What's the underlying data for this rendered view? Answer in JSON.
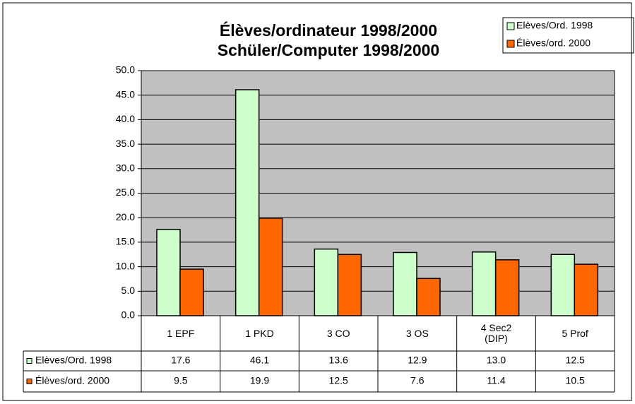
{
  "chart_data": {
    "type": "bar",
    "title": "Élèves/ordinateur 1998/2000",
    "subtitle": "Schüler/Computer 1998/2000",
    "categories": [
      "1 EPF",
      "1 PKD",
      "3 CO",
      "3 OS",
      "4 Sec2\n(DIP)",
      "5 Prof"
    ],
    "series": [
      {
        "name": "Elèves/Ord. 1998",
        "color": "#ccffcc",
        "values": [
          17.6,
          46.1,
          13.6,
          12.9,
          13.0,
          12.5
        ],
        "value_labels": [
          "17.6",
          "46.1",
          "13.6",
          "12.9",
          "13.0",
          "12.5"
        ]
      },
      {
        "name": "Élèves/ord. 2000",
        "color": "#ff6600",
        "values": [
          9.5,
          19.9,
          12.5,
          7.6,
          11.4,
          10.5
        ],
        "value_labels": [
          "9.5",
          "19.9",
          "12.5",
          "7.6",
          "11.4",
          "10.5"
        ]
      }
    ],
    "ylim": [
      0,
      50
    ],
    "yticks": [
      {
        "value": 0,
        "label": "0.0"
      },
      {
        "value": 5,
        "label": "5.0"
      },
      {
        "value": 10,
        "label": "10.0"
      },
      {
        "value": 15,
        "label": "15.0"
      },
      {
        "value": 20,
        "label": "20.0"
      },
      {
        "value": 25,
        "label": "25.0"
      },
      {
        "value": 30,
        "label": "30.0"
      },
      {
        "value": 35,
        "label": "35.0"
      },
      {
        "value": 40,
        "label": "40.0"
      },
      {
        "value": 45,
        "label": "45.0"
      },
      {
        "value": 50,
        "label": "50.0"
      }
    ],
    "grid": true,
    "legend": "top-right",
    "plot_background": "#c0c0c0"
  }
}
